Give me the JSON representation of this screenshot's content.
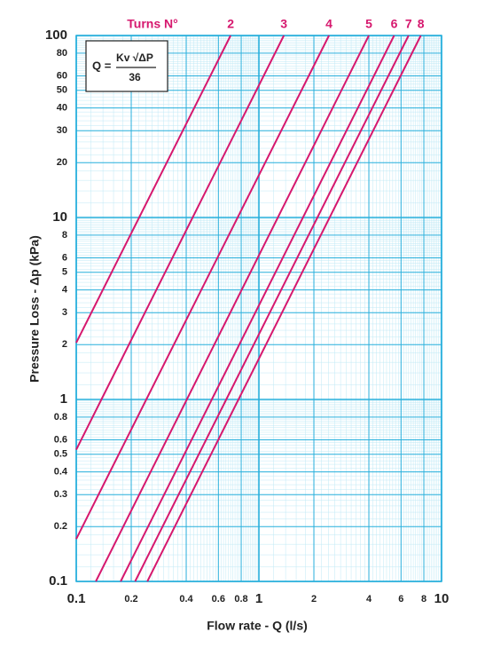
{
  "chart_data": {
    "type": "line",
    "legend_title": "Turns N°",
    "xlabel": "Flow rate - Q (l/s)",
    "ylabel": "Pressure Loss  - Δp (kPa)",
    "formula": {
      "lhs": "Q =",
      "numerator": "Kv √ΔP",
      "denominator": "36"
    },
    "log_x": true,
    "log_y": true,
    "grid": true,
    "minor_grid": true,
    "xlim": [
      0.1,
      10
    ],
    "ylim": [
      0.1,
      100
    ],
    "xticks": [
      0.1,
      0.2,
      0.4,
      0.6,
      0.8,
      1,
      2,
      4,
      6,
      8,
      10
    ],
    "yticks": [
      0.1,
      0.2,
      0.3,
      0.4,
      0.5,
      0.6,
      0.8,
      1,
      2,
      3,
      4,
      5,
      6,
      8,
      10,
      20,
      30,
      40,
      50,
      60,
      80,
      100
    ],
    "series": [
      {
        "name": "2",
        "color": "#d6186e",
        "x": [
          0.1,
          0.7
        ],
        "values": [
          2.05,
          100
        ]
      },
      {
        "name": "3",
        "color": "#d6186e",
        "x": [
          0.1,
          1.37
        ],
        "values": [
          0.53,
          100
        ]
      },
      {
        "name": "4",
        "color": "#d6186e",
        "x": [
          0.1,
          2.42
        ],
        "values": [
          0.171,
          100
        ]
      },
      {
        "name": "5",
        "color": "#d6186e",
        "x": [
          0.128,
          4.0
        ],
        "values": [
          0.1,
          100
        ]
      },
      {
        "name": "6",
        "color": "#d6186e",
        "x": [
          0.175,
          5.5
        ],
        "values": [
          0.1,
          100
        ]
      },
      {
        "name": "7",
        "color": "#d6186e",
        "x": [
          0.21,
          6.6
        ],
        "values": [
          0.1,
          100
        ]
      },
      {
        "name": "8",
        "color": "#d6186e",
        "x": [
          0.245,
          7.7
        ],
        "values": [
          0.1,
          100
        ]
      }
    ]
  }
}
